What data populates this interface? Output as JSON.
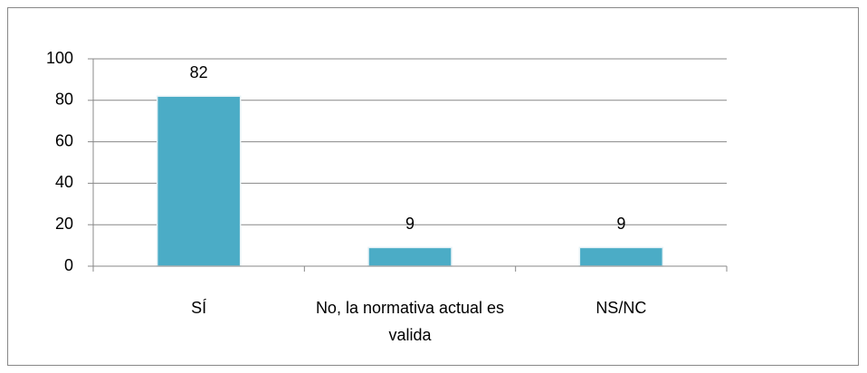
{
  "chart_data": {
    "type": "bar",
    "categories": [
      "SÍ",
      "No, la normativa actual es valida",
      "NS/NC"
    ],
    "values": [
      82,
      9,
      9
    ],
    "color": "#4bacc6",
    "ylim": [
      0,
      100
    ],
    "yticks": [
      0,
      20,
      40,
      60,
      80,
      100
    ],
    "grid": true
  }
}
